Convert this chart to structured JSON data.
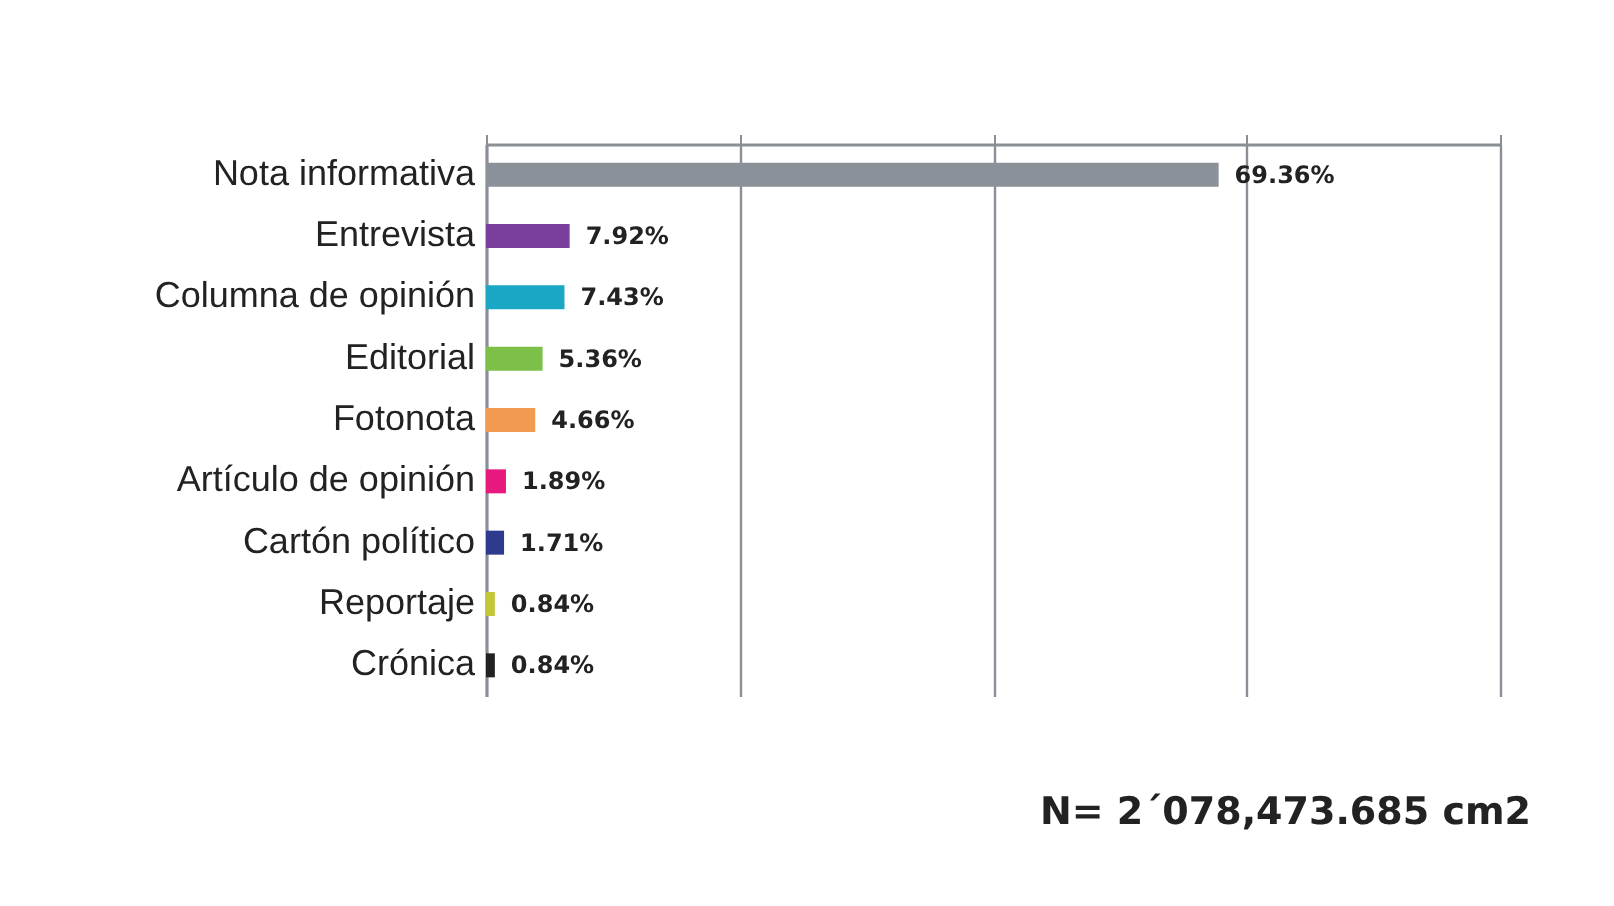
{
  "chart_data": {
    "type": "bar",
    "orientation": "horizontal",
    "categories": [
      "Nota informativa",
      "Entrevista",
      "Columna de opinión",
      "Editorial",
      "Fotonota",
      "Artículo de opinión",
      "Cartón político",
      "Reportaje",
      "Crónica"
    ],
    "values": [
      69.36,
      7.92,
      7.43,
      5.36,
      4.66,
      1.89,
      1.71,
      0.84,
      0.84
    ],
    "value_labels": [
      "69.36%",
      "7.92%",
      "7.43%",
      "5.36%",
      "4.66%",
      "1.89%",
      "1.71%",
      "0.84%",
      "0.84%"
    ],
    "colors": [
      "#8a9198",
      "#7a3e9d",
      "#1aa7c4",
      "#7cc04a",
      "#f39a52",
      "#e8197c",
      "#2e3a8e",
      "#c4c63a",
      "#222222"
    ],
    "xlim": [
      0,
      96
    ],
    "xticks": [
      {
        "value": 0,
        "label": null
      },
      {
        "value": 24,
        "label": null
      },
      {
        "value": 48,
        "label": null
      },
      {
        "value": 72,
        "label": null
      },
      {
        "value": 96,
        "label": null
      }
    ],
    "grid": "x",
    "annotations": [
      "N= 2´078,473.685 cm2"
    ]
  }
}
